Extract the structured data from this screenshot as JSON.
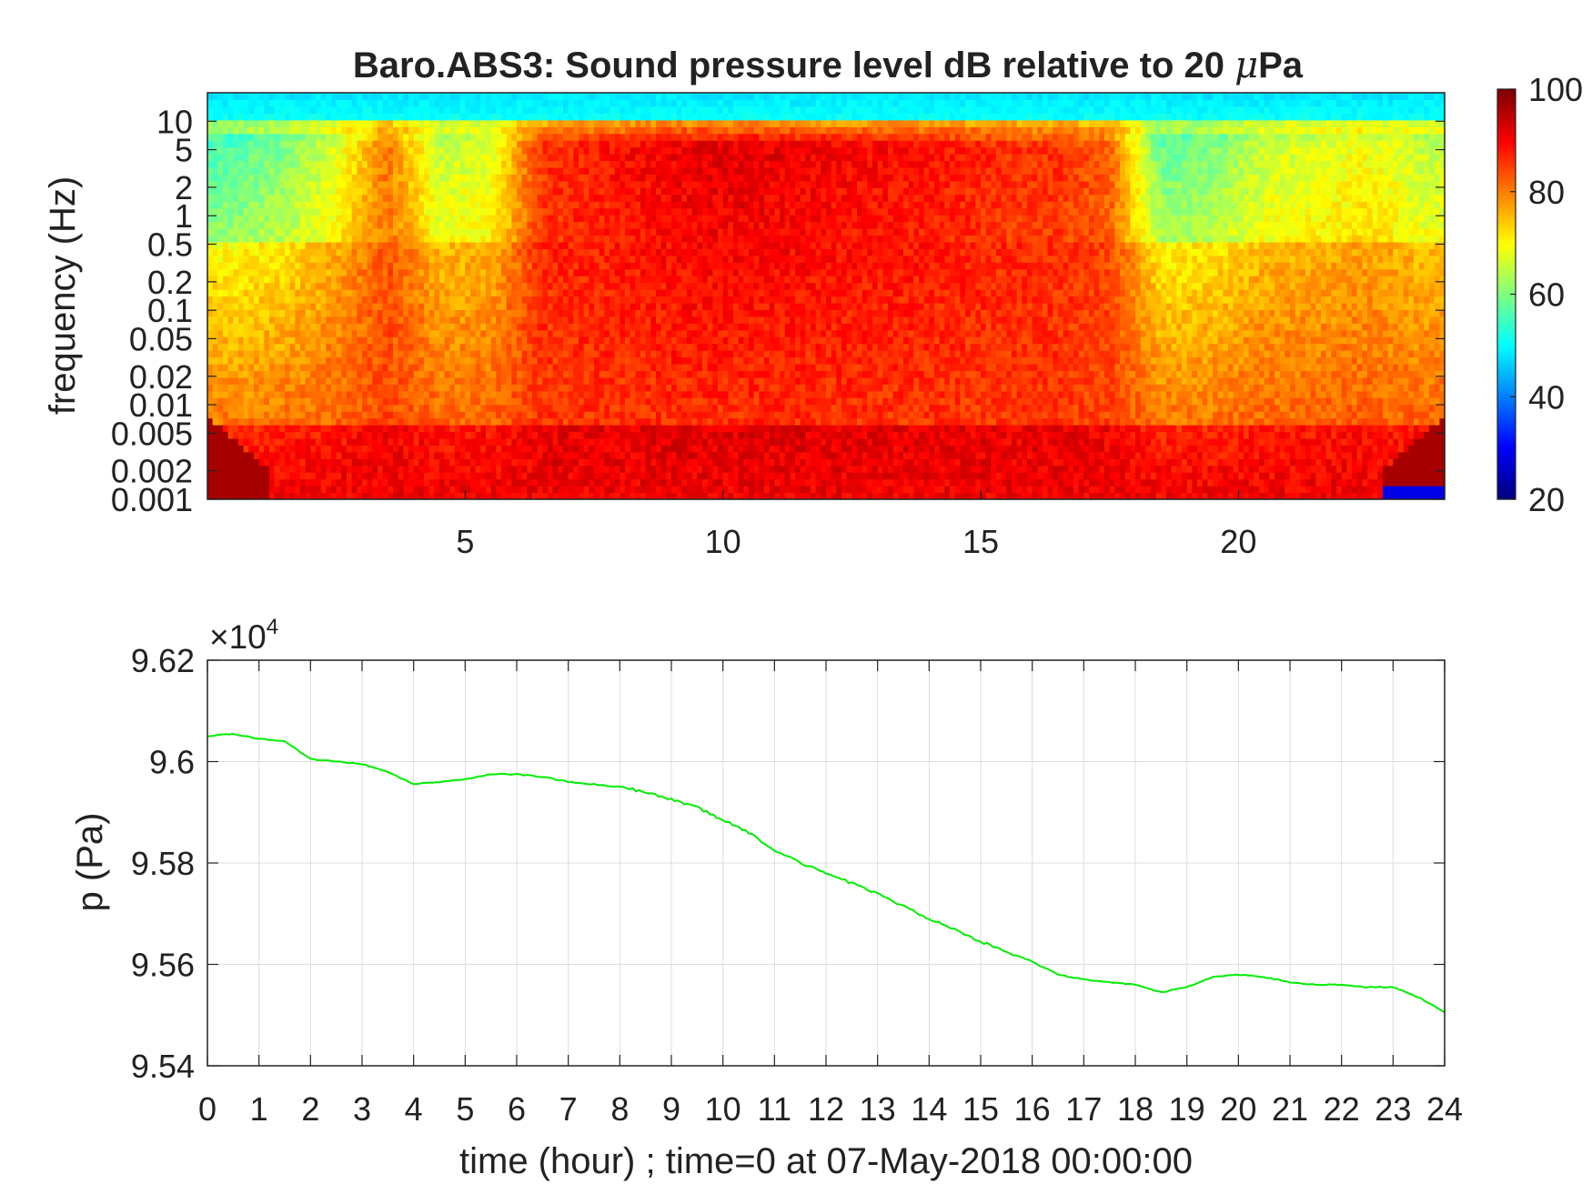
{
  "chart_data": [
    {
      "type": "heatmap",
      "title": "Baro.ABS3: Sound pressure level dB relative to 20 μPa",
      "title_parts": {
        "prefix": "Baro.ABS3: Sound pressure level dB relative to 20 ",
        "mu": "μ",
        "suffix": "Pa"
      },
      "xlabel": "",
      "ylabel": "frequency (Hz)",
      "xlim": [
        0,
        24
      ],
      "x_ticks": [
        5,
        10,
        15,
        20
      ],
      "x_tick_labels": [
        "5",
        "10",
        "15",
        "20"
      ],
      "y_scale": "log",
      "ylim": [
        0.001,
        20
      ],
      "y_ticks": [
        0.001,
        0.002,
        0.005,
        0.01,
        0.02,
        0.05,
        0.1,
        0.2,
        0.5,
        1,
        2,
        5,
        10
      ],
      "y_tick_labels": [
        "0.001",
        "0.002",
        "0.005",
        "0.01",
        "0.02",
        "0.05",
        "0.1",
        "0.2",
        "0.5",
        "1",
        "2",
        "5",
        "10"
      ],
      "colorbar": {
        "range": [
          20,
          100
        ],
        "ticks": [
          20,
          40,
          60,
          80,
          100
        ],
        "tick_labels": [
          "20",
          "40",
          "60",
          "80",
          "100"
        ],
        "colormap": "jet"
      },
      "time_bins_hours": [
        0.5,
        1.5,
        2.5,
        3.5,
        4.5,
        5.5,
        6.5,
        7.5,
        8.5,
        9.5,
        10.5,
        11.5,
        12.5,
        13.5,
        14.5,
        15.5,
        16.5,
        17.5,
        18.5,
        19.5,
        20.5,
        21.5,
        22.5,
        23.5
      ],
      "activity_envelope": [
        0.05,
        0.15,
        0.35,
        0.7,
        0.3,
        0.35,
        0.85,
        0.9,
        0.95,
        1.0,
        1.0,
        0.98,
        0.95,
        0.93,
        0.9,
        0.85,
        0.85,
        0.75,
        0.1,
        0.15,
        0.3,
        0.35,
        0.4,
        0.3
      ],
      "grid": false
    },
    {
      "type": "line",
      "title": "",
      "xlabel": "time (hour) ; time=0 at 07-May-2018 00:00:00",
      "ylabel": "p (Pa)",
      "xlim": [
        0,
        24
      ],
      "ylim": [
        95400,
        96200
      ],
      "x_ticks": [
        0,
        1,
        2,
        3,
        4,
        5,
        6,
        7,
        8,
        9,
        10,
        11,
        12,
        13,
        14,
        15,
        16,
        17,
        18,
        19,
        20,
        21,
        22,
        23,
        24
      ],
      "x_tick_labels": [
        "0",
        "1",
        "2",
        "3",
        "4",
        "5",
        "6",
        "7",
        "8",
        "9",
        "10",
        "11",
        "12",
        "13",
        "14",
        "15",
        "16",
        "17",
        "18",
        "19",
        "20",
        "21",
        "22",
        "23",
        "24"
      ],
      "y_ticks": [
        95400,
        95600,
        95800,
        96000,
        96200
      ],
      "y_tick_labels": [
        "9.54",
        "9.56",
        "9.58",
        "9.6",
        "9.62"
      ],
      "y_exponent": {
        "base": "×10",
        "power": "4"
      },
      "grid": true,
      "series": [
        {
          "color": "#00ee00",
          "x": [
            0,
            0.5,
            1,
            1.5,
            2,
            2.5,
            3,
            3.5,
            4,
            4.5,
            5,
            5.5,
            6,
            6.5,
            7,
            7.5,
            8,
            8.5,
            9,
            9.5,
            10,
            10.5,
            11,
            11.5,
            12,
            12.5,
            13,
            13.5,
            14,
            14.5,
            15,
            15.5,
            16,
            16.5,
            17,
            17.5,
            18,
            18.5,
            19,
            19.5,
            20,
            20.5,
            21,
            21.5,
            22,
            22.5,
            23,
            23.5,
            24
          ],
          "values": [
            96050,
            96055,
            96045,
            96040,
            96005,
            96000,
            95995,
            95980,
            95955,
            95960,
            95965,
            95975,
            95975,
            95970,
            95960,
            95955,
            95950,
            95940,
            95925,
            95910,
            95885,
            95860,
            95825,
            95800,
            95780,
            95760,
            95740,
            95715,
            95690,
            95670,
            95645,
            95625,
            95605,
            95580,
            95570,
            95565,
            95560,
            95545,
            95555,
            95575,
            95580,
            95575,
            95565,
            95560,
            95560,
            95555,
            95555,
            95535,
            95505
          ]
        }
      ]
    }
  ]
}
